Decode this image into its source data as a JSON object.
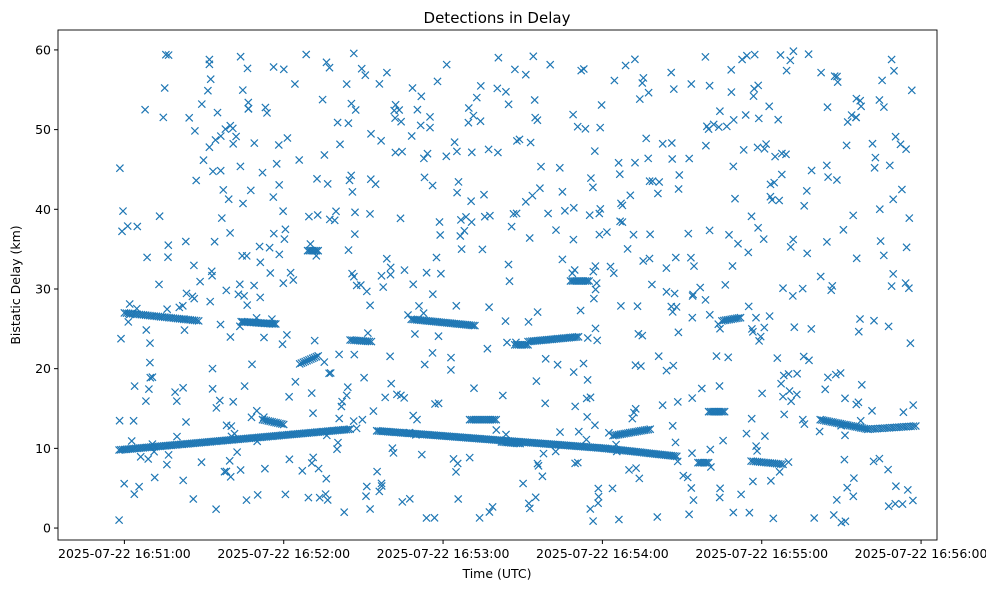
{
  "chart_data": {
    "type": "scatter",
    "title": "Detections in Delay",
    "xlabel": "Time (UTC)",
    "ylabel": "Bistatic Delay (km)",
    "marker": "x",
    "color": "#1f77b4",
    "grid": false,
    "legend": "none",
    "xlim": [
      "2025-07-22 16:50:35",
      "2025-07-22 16:56:06"
    ],
    "ylim": [
      -1.5,
      62.5
    ],
    "x_ticks": [
      "2025-07-22 16:51:00",
      "2025-07-22 16:52:00",
      "2025-07-22 16:53:00",
      "2025-07-22 16:54:00",
      "2025-07-22 16:55:00",
      "2025-07-22 16:56:00"
    ],
    "y_ticks": [
      0,
      10,
      20,
      30,
      40,
      50,
      60
    ],
    "tracks": [
      {
        "start": "2025-07-22 16:50:58",
        "end": "2025-07-22 16:52:25",
        "y_start": 9.8,
        "y_end": 12.4,
        "step_s": 0.7
      },
      {
        "start": "2025-07-22 16:52:35",
        "end": "2025-07-22 16:54:01",
        "y_start": 12.2,
        "y_end": 10.0,
        "step_s": 0.7
      },
      {
        "start": "2025-07-22 16:54:01",
        "end": "2025-07-22 16:54:28",
        "y_start": 10.0,
        "y_end": 9.0,
        "step_s": 0.7
      },
      {
        "start": "2025-07-22 16:51:00",
        "end": "2025-07-22 16:51:28",
        "y_start": 27.0,
        "y_end": 26.0,
        "step_s": 0.8
      },
      {
        "start": "2025-07-22 16:51:44",
        "end": "2025-07-22 16:51:57",
        "y_start": 25.9,
        "y_end": 25.6,
        "step_s": 0.6
      },
      {
        "start": "2025-07-22 16:52:48",
        "end": "2025-07-22 16:53:12",
        "y_start": 26.2,
        "y_end": 25.4,
        "step_s": 0.7
      },
      {
        "start": "2025-07-22 16:53:32",
        "end": "2025-07-22 16:53:51",
        "y_start": 23.4,
        "y_end": 24.0,
        "step_s": 0.7
      },
      {
        "start": "2025-07-22 16:51:52",
        "end": "2025-07-22 16:52:00",
        "y_start": 13.6,
        "y_end": 13.0,
        "step_s": 0.7
      },
      {
        "start": "2025-07-22 16:52:06",
        "end": "2025-07-22 16:52:13",
        "y_start": 20.6,
        "y_end": 21.6,
        "step_s": 0.7
      },
      {
        "start": "2025-07-22 16:53:10",
        "end": "2025-07-22 16:53:20",
        "y_start": 13.6,
        "y_end": 13.6,
        "step_s": 0.7
      },
      {
        "start": "2025-07-22 16:54:04",
        "end": "2025-07-22 16:54:18",
        "y_start": 11.6,
        "y_end": 12.4,
        "step_s": 0.7
      },
      {
        "start": "2025-07-22 16:54:45",
        "end": "2025-07-22 16:54:52",
        "y_start": 26.0,
        "y_end": 26.4,
        "step_s": 0.7
      },
      {
        "start": "2025-07-22 16:55:22",
        "end": "2025-07-22 16:55:40",
        "y_start": 13.6,
        "y_end": 12.4,
        "step_s": 0.7
      },
      {
        "start": "2025-07-22 16:55:40",
        "end": "2025-07-22 16:55:58",
        "y_start": 12.4,
        "y_end": 12.8,
        "step_s": 0.9
      },
      {
        "start": "2025-07-22 16:54:40",
        "end": "2025-07-22 16:54:46",
        "y_start": 14.6,
        "y_end": 14.6,
        "step_s": 0.7
      },
      {
        "start": "2025-07-22 16:54:56",
        "end": "2025-07-22 16:55:08",
        "y_start": 8.4,
        "y_end": 8.0,
        "step_s": 0.8
      },
      {
        "start": "2025-07-22 16:54:36",
        "end": "2025-07-22 16:54:40",
        "y_start": 8.2,
        "y_end": 8.2,
        "step_s": 0.7
      },
      {
        "start": "2025-07-22 16:52:09",
        "end": "2025-07-22 16:52:13",
        "y_start": 34.8,
        "y_end": 34.8,
        "step_s": 0.7
      },
      {
        "start": "2025-07-22 16:53:48",
        "end": "2025-07-22 16:53:55",
        "y_start": 31.0,
        "y_end": 31.0,
        "step_s": 0.7
      },
      {
        "start": "2025-07-22 16:52:25",
        "end": "2025-07-22 16:52:33",
        "y_start": 23.6,
        "y_end": 23.4,
        "step_s": 0.7
      },
      {
        "start": "2025-07-22 16:53:27",
        "end": "2025-07-22 16:53:32",
        "y_start": 23.0,
        "y_end": 23.0,
        "step_s": 0.7
      },
      {
        "start": "2025-07-22 16:53:22",
        "end": "2025-07-22 16:53:29",
        "y_start": 10.8,
        "y_end": 10.6,
        "step_s": 0.7
      }
    ],
    "scatter_points": {
      "count": 720,
      "x_range": [
        "2025-07-22 16:50:58",
        "2025-07-22 16:55:58"
      ],
      "y_range": [
        0.6,
        60.0
      ]
    },
    "extra_points": [
      {
        "x": "2025-07-22 16:50:58",
        "y": 1.0
      },
      {
        "x": "2025-07-22 16:51:32",
        "y": 58.8
      },
      {
        "x": "2025-07-22 16:51:32",
        "y": 58.2
      },
      {
        "x": "2025-07-22 16:53:53",
        "y": 57.6
      },
      {
        "x": "2025-07-22 16:53:52",
        "y": 57.4
      },
      {
        "x": "2025-07-22 16:55:30",
        "y": 0.7
      },
      {
        "x": "2025-07-22 16:52:31",
        "y": 4.0
      },
      {
        "x": "2025-07-22 16:52:36",
        "y": 4.6
      }
    ]
  }
}
